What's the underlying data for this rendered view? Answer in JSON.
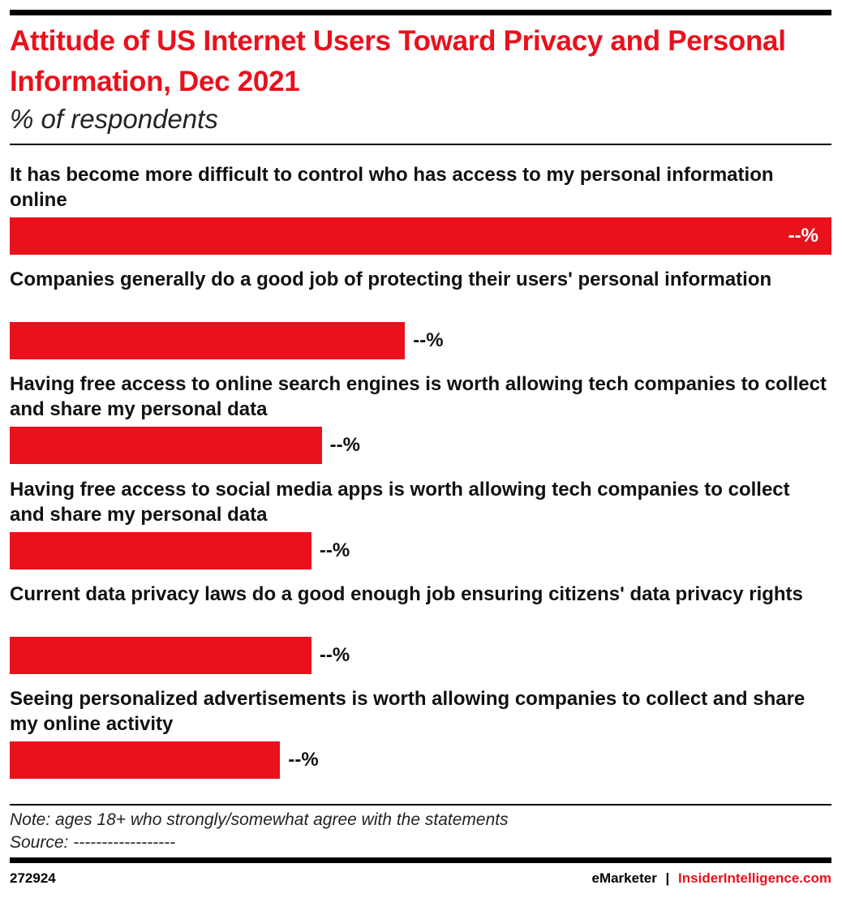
{
  "chart_data": {
    "type": "bar",
    "orientation": "horizontal",
    "title": "Attitude of US Internet Users Toward Privacy and Personal Information, Dec 2021",
    "subtitle": "% of respondents",
    "categories": [
      "It has become more difficult to control who has access to my personal information online",
      "Companies generally do a good job of protecting their users' personal information",
      "Having free access to online search engines is worth allowing tech companies to collect and share my personal data",
      "Having free access to social media apps is worth allowing tech companies to collect and share my personal data",
      "Current data privacy laws do a good enough job ensuring citizens' data privacy rights",
      "Seeing personalized advertisements is worth allowing companies to collect and share my online activity"
    ],
    "values": [
      79,
      38,
      30,
      29,
      29,
      26
    ],
    "value_labels": [
      "--%",
      "--%",
      "--%",
      "--%",
      "--%",
      "--%"
    ],
    "color": "#e8111c",
    "note": "Note: ages 18+ who strongly/somewhat agree with the statements",
    "source": "Source: ------------------"
  },
  "footer": {
    "chart_id": "272924",
    "brand": "eMarketer",
    "separator": "|",
    "site": "InsiderIntelligence.com"
  }
}
